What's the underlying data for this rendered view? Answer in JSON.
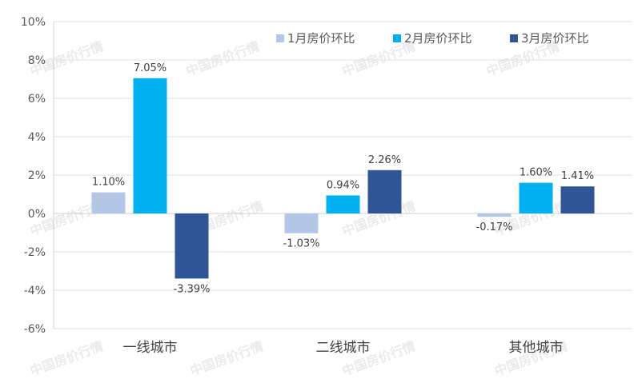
{
  "chart_data": {
    "type": "bar",
    "categories": [
      "一线城市",
      "二线城市",
      "其他城市"
    ],
    "series": [
      {
        "name": "1月房价环比",
        "values": [
          1.1,
          -1.03,
          -0.17
        ],
        "color": "#b4c7e7"
      },
      {
        "name": "2月房价环比",
        "values": [
          7.05,
          0.94,
          1.6
        ],
        "color": "#00b0f0"
      },
      {
        "name": "3月房价环比",
        "values": [
          -3.39,
          2.26,
          1.41
        ],
        "color": "#2f5597"
      }
    ],
    "data_labels": [
      [
        "1.10%",
        "-1.03%",
        "-0.17%"
      ],
      [
        "7.05%",
        "0.94%",
        "1.60%"
      ],
      [
        "-3.39%",
        "2.26%",
        "1.41%"
      ]
    ],
    "y_ticks": [
      "-6%",
      "-4%",
      "-2%",
      "0%",
      "2%",
      "4%",
      "6%",
      "8%",
      "10%"
    ],
    "ylim": [
      -6,
      10
    ],
    "grid": true,
    "legend_position": "top-right",
    "watermark": "中国房价行情"
  }
}
